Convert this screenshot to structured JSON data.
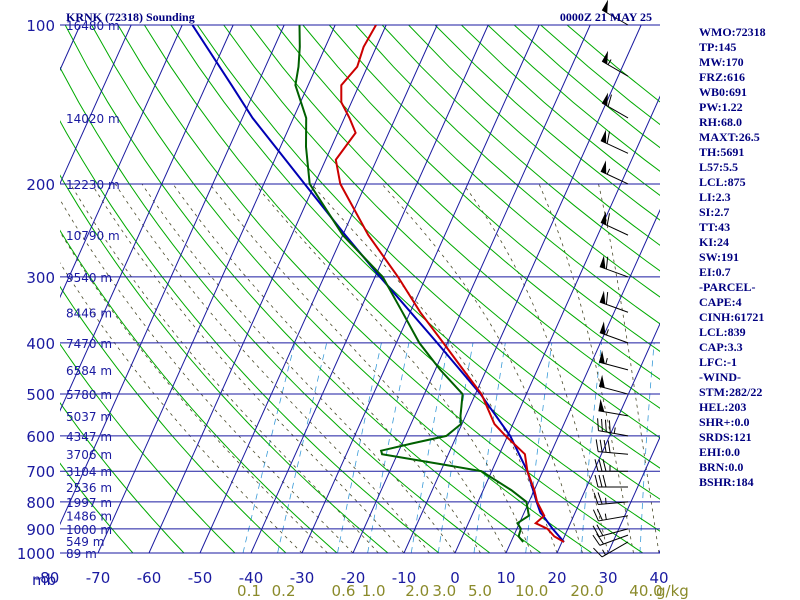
{
  "title_left": "KRNK (72318) Sounding",
  "title_right": "0000Z 21 MAY 25",
  "units": {
    "pressure": "mb",
    "mixing_ratio": "g/kg"
  },
  "colors": {
    "isotherm": "#1a1aa0",
    "dry_adiabat": "#00aa00",
    "moist_adiabat": "#4a4a2a",
    "mixing_ratio": "#3a9bd8",
    "temperature": "#cc0000",
    "dewpoint": "#006000",
    "parcel": "#0000b4",
    "wind": "#000000"
  },
  "chart_data": {
    "type": "line",
    "diagram": "skew-T log-P",
    "pressure_levels": [
      100,
      200,
      300,
      400,
      500,
      600,
      700,
      800,
      900,
      1000
    ],
    "temperature_ticks": [
      -80,
      -70,
      -60,
      -50,
      -40,
      -30,
      -20,
      -10,
      0,
      10,
      20,
      30,
      40
    ],
    "mixing_ratio_labels": [
      "0.1",
      "0.2",
      "0.6",
      "1.0",
      "2.0",
      "3.0",
      "5.0",
      "10.0",
      "20.0",
      "40.0"
    ],
    "mixing_ratio_values": [
      0.1,
      0.2,
      0.6,
      1.0,
      2.0,
      3.0,
      5.0,
      10.0,
      20.0,
      40.0
    ],
    "height_labels": [
      {
        "p": 100,
        "text": "16480 m"
      },
      {
        "p": 150,
        "text": "14020 m"
      },
      {
        "p": 200,
        "text": "12230 m"
      },
      {
        "p": 250,
        "text": "10790 m"
      },
      {
        "p": 300,
        "text": "9540 m"
      },
      {
        "p": 350,
        "text": "8446 m"
      },
      {
        "p": 400,
        "text": "7470 m"
      },
      {
        "p": 450,
        "text": "6584 m"
      },
      {
        "p": 500,
        "text": "5780 m"
      },
      {
        "p": 550,
        "text": "5037 m"
      },
      {
        "p": 600,
        "text": "4347 m"
      },
      {
        "p": 650,
        "text": "3706 m"
      },
      {
        "p": 700,
        "text": "3104 m"
      },
      {
        "p": 750,
        "text": "2536 m"
      },
      {
        "p": 800,
        "text": "1997 m"
      },
      {
        "p": 850,
        "text": "1486 m"
      },
      {
        "p": 900,
        "text": "1000 m"
      },
      {
        "p": 950,
        "text": "549 m"
      },
      {
        "p": 1000,
        "text": "89 m"
      }
    ],
    "temperature_profile": [
      [
        953,
        20.4
      ],
      [
        930,
        18.0
      ],
      [
        900,
        16.0
      ],
      [
        878,
        13.2
      ],
      [
        850,
        14.2
      ],
      [
        800,
        11.6
      ],
      [
        760,
        10.0
      ],
      [
        700,
        7.0
      ],
      [
        650,
        5.0
      ],
      [
        600,
        -0.4
      ],
      [
        570,
        -3.6
      ],
      [
        500,
        -8.8
      ],
      [
        450,
        -14.5
      ],
      [
        400,
        -20.8
      ],
      [
        350,
        -28.0
      ],
      [
        300,
        -35.5
      ],
      [
        250,
        -45.0
      ],
      [
        200,
        -55.0
      ],
      [
        180,
        -58.0
      ],
      [
        160,
        -56.5
      ],
      [
        150,
        -59.0
      ],
      [
        140,
        -62.0
      ],
      [
        130,
        -63.5
      ],
      [
        120,
        -62.0
      ],
      [
        110,
        -62.5
      ],
      [
        100,
        -62.0
      ]
    ],
    "dewpoint_profile": [
      [
        953,
        12.4
      ],
      [
        930,
        11.0
      ],
      [
        900,
        10.8
      ],
      [
        878,
        9.6
      ],
      [
        850,
        11.2
      ],
      [
        800,
        9.5
      ],
      [
        760,
        5.5
      ],
      [
        700,
        -2.0
      ],
      [
        680,
        -10.0
      ],
      [
        650,
        -23.0
      ],
      [
        640,
        -23.5
      ],
      [
        620,
        -18.0
      ],
      [
        600,
        -12.0
      ],
      [
        570,
        -10.2
      ],
      [
        550,
        -11.0
      ],
      [
        500,
        -12.5
      ],
      [
        450,
        -19.0
      ],
      [
        400,
        -25.5
      ],
      [
        350,
        -31.5
      ],
      [
        300,
        -38.5
      ],
      [
        250,
        -50.0
      ],
      [
        200,
        -61.0
      ],
      [
        170,
        -65.0
      ],
      [
        150,
        -67.5
      ],
      [
        130,
        -72.5
      ],
      [
        120,
        -73.5
      ],
      [
        110,
        -75.0
      ],
      [
        100,
        -77.0
      ]
    ],
    "parcel_profile": [
      [
        953,
        20.4
      ],
      [
        900,
        17.0
      ],
      [
        850,
        14.0
      ],
      [
        839,
        13.2
      ],
      [
        800,
        11.5
      ],
      [
        700,
        7.0
      ],
      [
        600,
        0.5
      ],
      [
        500,
        -9.0
      ],
      [
        400,
        -22.0
      ],
      [
        300,
        -39.0
      ],
      [
        250,
        -49.5
      ],
      [
        200,
        -62.0
      ],
      [
        150,
        -78.0
      ],
      [
        130,
        -85.0
      ],
      [
        100,
        -98.0
      ]
    ],
    "wind_barbs": [
      {
        "p": 953,
        "dir": 240,
        "spd": 15
      },
      {
        "p": 925,
        "dir": 250,
        "spd": 20
      },
      {
        "p": 900,
        "dir": 255,
        "spd": 20
      },
      {
        "p": 850,
        "dir": 260,
        "spd": 25
      },
      {
        "p": 800,
        "dir": 265,
        "spd": 25
      },
      {
        "p": 750,
        "dir": 270,
        "spd": 30
      },
      {
        "p": 700,
        "dir": 270,
        "spd": 35
      },
      {
        "p": 650,
        "dir": 275,
        "spd": 40
      },
      {
        "p": 600,
        "dir": 280,
        "spd": 45
      },
      {
        "p": 550,
        "dir": 280,
        "spd": 50
      },
      {
        "p": 500,
        "dir": 285,
        "spd": 50
      },
      {
        "p": 450,
        "dir": 285,
        "spd": 55
      },
      {
        "p": 400,
        "dir": 290,
        "spd": 55
      },
      {
        "p": 350,
        "dir": 290,
        "spd": 60
      },
      {
        "p": 300,
        "dir": 290,
        "spd": 60
      },
      {
        "p": 250,
        "dir": 295,
        "spd": 60
      },
      {
        "p": 200,
        "dir": 295,
        "spd": 55
      },
      {
        "p": 175,
        "dir": 295,
        "spd": 60
      },
      {
        "p": 150,
        "dir": 300,
        "spd": 60
      },
      {
        "p": 125,
        "dir": 300,
        "spd": 55
      },
      {
        "p": 100,
        "dir": 300,
        "spd": 50
      }
    ]
  },
  "indices": [
    "WMO:72318",
    "TP:145",
    "MW:170",
    "FRZ:616",
    "WB0:691",
    "PW:1.22",
    "RH:68.0",
    "MAXT:26.5",
    "TH:5691",
    "L57:5.5",
    "LCL:875",
    "LI:2.3",
    "SI:2.7",
    "TT:43",
    "KI:24",
    "SW:191",
    "EI:0.7",
    "-PARCEL-",
    "CAPE:4",
    "CINH:61721",
    "LCL:839",
    "CAP:3.3",
    "LFC:-1",
    "-WIND-",
    "STM:282/22",
    "HEL:203",
    "SHR+:0.0",
    "SRDS:121",
    "EHI:0.0",
    "BRN:0.0",
    "BSHR:184"
  ]
}
